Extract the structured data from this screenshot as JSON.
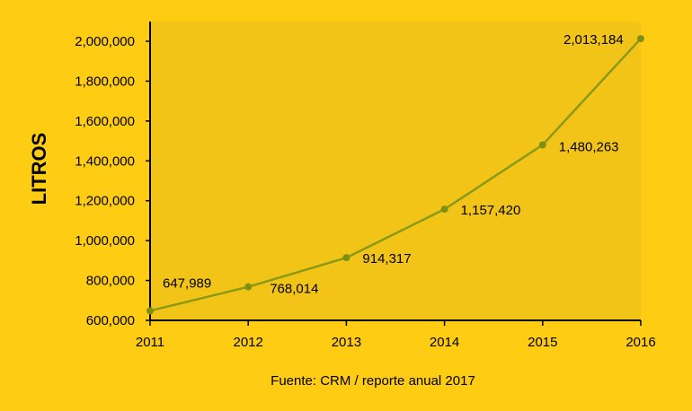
{
  "chart_data": {
    "type": "line",
    "title": "",
    "xlabel": "",
    "ylabel": "LITROS",
    "categories": [
      "2011",
      "2012",
      "2013",
      "2014",
      "2015",
      "2016"
    ],
    "series": [
      {
        "values": [
          647989,
          768014,
          914317,
          1157420,
          1480263,
          2013184
        ]
      }
    ],
    "data_labels": [
      "647,989",
      "768,014",
      "914,317",
      "1,157,420",
      "1,480,263",
      "2,013,184"
    ],
    "ylim": [
      600000,
      2000000
    ],
    "yticks": [
      600000,
      800000,
      1000000,
      1200000,
      1400000,
      1600000,
      1800000,
      2000000
    ],
    "ytick_labels": [
      "600,000",
      "800,000",
      "1,000,000",
      "1,200,000",
      "1,400,000",
      "1,600,000",
      "1,800,000",
      "2,000,000"
    ],
    "grid": false,
    "legend": "none",
    "source_note": "Fuente: CRM / reporte anual 2017"
  },
  "colors": {
    "background": "#FFCC14",
    "plot_area": "#F2C418",
    "line": "#8A9A16",
    "marker": "#7E9012",
    "axis": "#000000"
  }
}
